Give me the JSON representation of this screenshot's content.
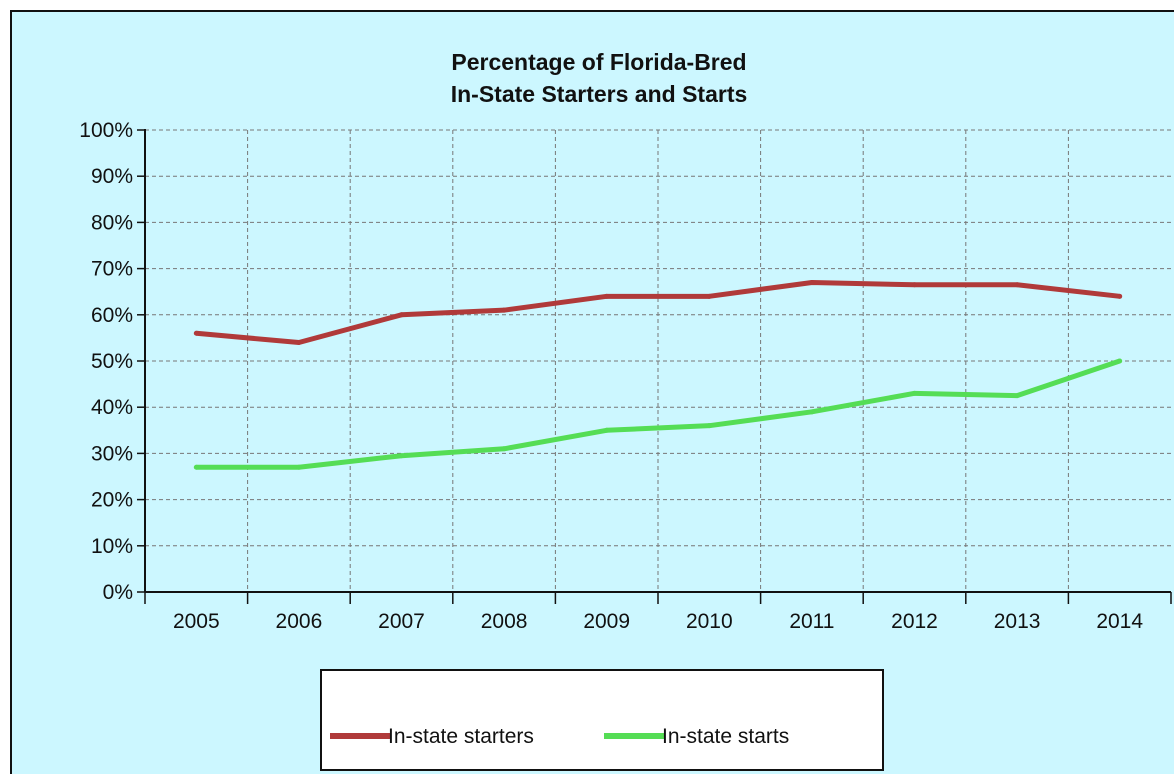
{
  "chart_data": {
    "type": "line",
    "title": [
      "Percentage of Florida-Bred",
      "In-State Starters and Starts"
    ],
    "xlabel": "",
    "ylabel": "",
    "categories": [
      "2005",
      "2006",
      "2007",
      "2008",
      "2009",
      "2010",
      "2011",
      "2012",
      "2013",
      "2014"
    ],
    "series": [
      {
        "name": "In-state starters",
        "color": "#b03a3a",
        "values": [
          56,
          54,
          60,
          61,
          64,
          64,
          67,
          66.5,
          66.5,
          64
        ]
      },
      {
        "name": "In-state starts",
        "color": "#55dd55",
        "values": [
          27,
          27,
          29.5,
          31,
          35,
          36,
          39,
          43,
          42.5,
          50
        ]
      }
    ],
    "y_ticks": [
      "0%",
      "10%",
      "20%",
      "30%",
      "40%",
      "50%",
      "60%",
      "70%",
      "80%",
      "90%",
      "100%"
    ],
    "ylim": [
      0,
      100
    ],
    "grid": true,
    "legend_position": "bottom",
    "background_color": "#ccf7ff"
  }
}
